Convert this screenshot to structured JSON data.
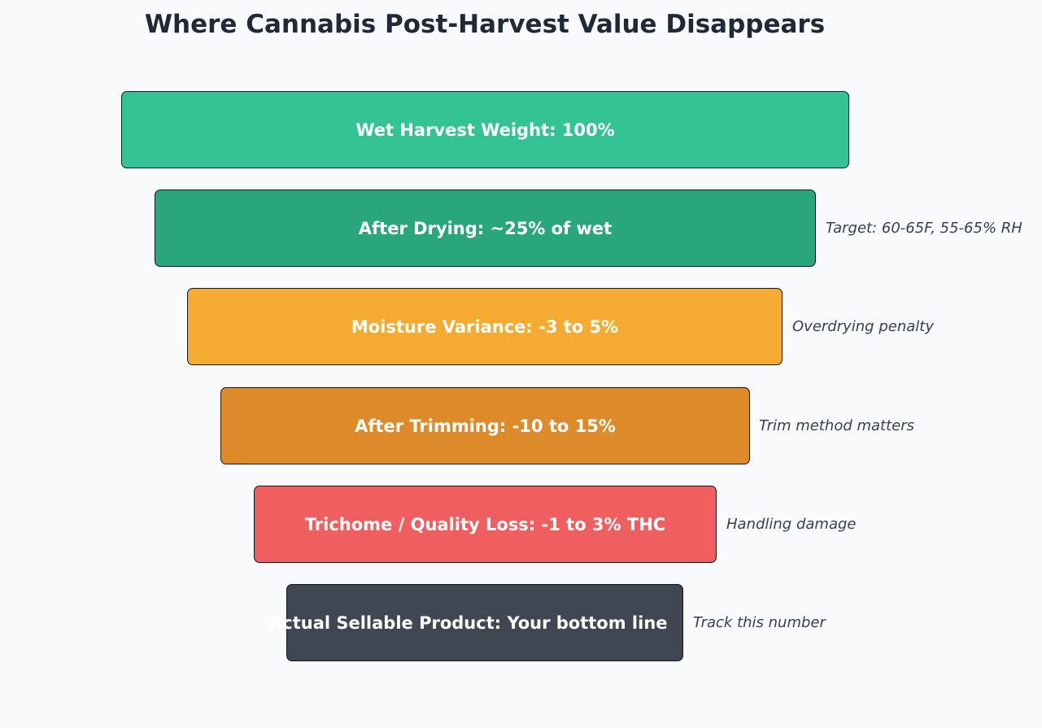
{
  "title": "Where Cannabis Post-Harvest Value Disappears",
  "stages": [
    {
      "label": "Wet Harvest Weight: 100%",
      "note": "",
      "color": "#34c393"
    },
    {
      "label": "After Drying: ~25% of wet",
      "note": "Target: 60-65F, 55-65% RH",
      "color": "#2aa67d"
    },
    {
      "label": "Moisture Variance: -3 to 5%",
      "note": "Overdrying penalty",
      "color": "#f5ab31"
    },
    {
      "label": "After Trimming: -10 to 15%",
      "note": "Trim method matters",
      "color": "#dd8a2b"
    },
    {
      "label": "Trichome / Quality Loss: -1 to 3% THC",
      "note": "Handling damage",
      "color": "#ef5f60"
    },
    {
      "label": "Actual Sellable Product: Your bottom line",
      "note": "Track this number",
      "color": "#3f4753"
    }
  ]
}
